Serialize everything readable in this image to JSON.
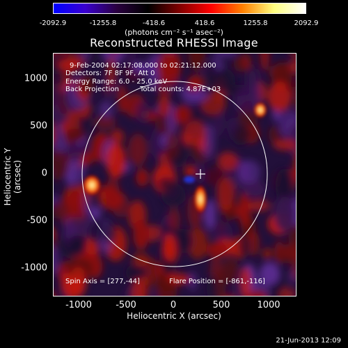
{
  "colorbar": {
    "ticks": [
      "-2092.9",
      "-1255.8",
      "-418.6",
      "418.6",
      "1255.8",
      "2092.9"
    ],
    "units": "(photons cm⁻² s⁻¹ asec⁻²)",
    "colors": [
      "#0000ff",
      "#3a00d0",
      "#2a0040",
      "#000000",
      "#800000",
      "#ff0000",
      "#ff8000",
      "#ffff80",
      "#ffffff"
    ]
  },
  "title": "Reconstructed RHESSI Image",
  "info": {
    "time": "9-Feb-2004 02:17:08.000 to 02:21:12.000",
    "detectors": "Detectors: 7F 8F 9F, Att 0",
    "energy": "Energy Range: 6.0 - 25.0 keV",
    "method": "Back Projection",
    "counts": "Total counts: 4.87E+03",
    "spin_axis": "Spin Axis = [277,-44]",
    "flare_position": "Flare Position = [-861,-116]"
  },
  "axes": {
    "xlabel": "Heliocentric X (arcsec)",
    "ylabel": "Heliocentric Y (arcsec)",
    "xticks": [
      "-1000",
      "-500",
      "0",
      "500",
      "1000"
    ],
    "yticks": [
      "1000",
      "500",
      "0",
      "-500",
      "-1000"
    ]
  },
  "footer": "21-Jun-2013 12:09"
}
